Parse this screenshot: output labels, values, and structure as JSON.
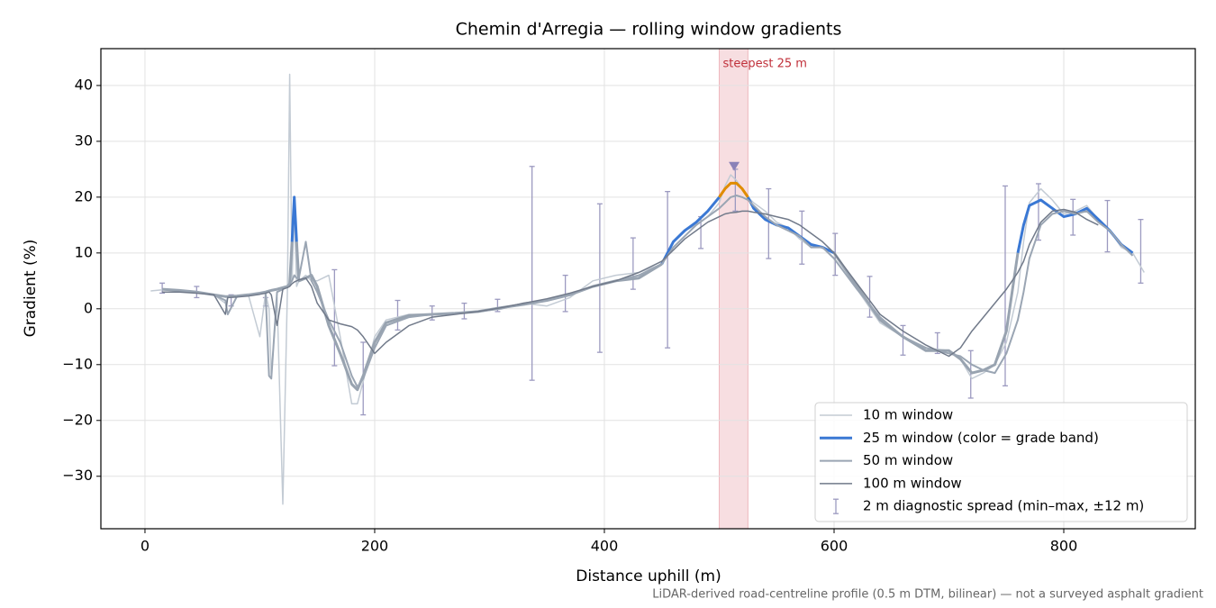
{
  "chart_data": {
    "type": "line",
    "title": "Chemin d'Arregia — rolling window gradients",
    "x_label": "Distance uphill (m)",
    "y_label": "Gradient (%)",
    "footnote": "LiDAR-derived road-centreline profile (0.5 m DTM, bilinear) — not a surveyed asphalt gradient",
    "xlim": [
      -38.4,
      914.5
    ],
    "ylim": [
      -39.4,
      46.6
    ],
    "xticks": [
      0,
      200,
      400,
      600,
      800
    ],
    "yticks": [
      {
        "value": -30,
        "label": "−30"
      },
      {
        "value": -20,
        "label": "−20"
      },
      {
        "value": -10,
        "label": "−10"
      },
      0,
      10,
      20,
      30,
      40
    ],
    "grid": true,
    "legend": "lower right",
    "x": [
      5,
      15,
      30,
      45,
      60,
      70,
      72,
      80,
      90,
      100,
      105,
      108,
      110,
      115,
      120,
      124,
      126,
      128,
      130,
      132,
      134,
      140,
      145,
      150,
      160,
      170,
      180,
      185,
      190,
      200,
      210,
      230,
      250,
      270,
      290,
      310,
      330,
      350,
      370,
      390,
      410,
      430,
      450,
      460,
      470,
      480,
      490,
      500,
      505,
      510,
      515,
      520,
      525,
      530,
      540,
      550,
      560,
      570,
      580,
      590,
      600,
      620,
      640,
      660,
      680,
      700,
      710,
      720,
      730,
      740,
      750,
      760,
      765,
      770,
      780,
      790,
      800,
      810,
      820,
      830,
      840,
      850,
      860,
      870
    ],
    "series": [
      {
        "name": "10 m window",
        "color": "#c3cbd4",
        "width": 1.5,
        "values": [
          3.2,
          3.4,
          3.2,
          3,
          2.5,
          1,
          2,
          2.2,
          2.5,
          -5,
          2.8,
          0,
          -12,
          2,
          -35,
          3.5,
          42,
          5,
          18,
          4,
          5,
          6,
          5,
          5,
          6,
          -5,
          -17,
          -17,
          -13,
          -5,
          -2,
          -1,
          -1,
          -0.8,
          -0.5,
          0,
          1,
          0.5,
          2,
          5,
          6,
          6.5,
          8,
          12,
          14,
          15,
          16.5,
          19,
          22,
          24,
          23,
          21.5,
          20,
          19,
          17.5,
          15.5,
          14.5,
          12.5,
          11,
          11,
          9,
          3.5,
          -2.5,
          -5,
          -7,
          -7.5,
          -9,
          -12.5,
          -11.5,
          -10,
          -6,
          3,
          12,
          19,
          21.5,
          19.5,
          17,
          17.5,
          18.5,
          16,
          14,
          11,
          10,
          6.5
        ]
      },
      {
        "name": "25 m window (color = grade band)",
        "color": "#3a78d4",
        "width": 3,
        "base_color": "#98a3b0",
        "grade_bands": [
          {
            "from": 10,
            "color": "#3a78d4"
          },
          {
            "from": 20,
            "color": "#e08c00"
          }
        ],
        "values": [
          null,
          3.5,
          3.3,
          3,
          2.5,
          2.2,
          2.2,
          2.3,
          2.5,
          2.8,
          3,
          3.2,
          3.3,
          3.5,
          3.8,
          4,
          4.5,
          12,
          20,
          12,
          5,
          5.5,
          6,
          4,
          -3,
          -8,
          -13.5,
          -14.5,
          -12,
          -6,
          -2.5,
          -1.2,
          -1,
          -0.8,
          -0.5,
          0.2,
          0.8,
          1.5,
          2.5,
          4,
          5,
          5.5,
          8,
          12,
          14,
          15.5,
          17.5,
          20,
          21.5,
          22.5,
          22.5,
          21.5,
          20,
          18,
          16,
          15,
          14.5,
          13,
          11.5,
          11,
          10,
          4,
          -2,
          -5,
          -7.5,
          -7.5,
          -9,
          -11.5,
          -11,
          -10,
          -4,
          10,
          15,
          18.5,
          19.5,
          18,
          16.5,
          17,
          18,
          16,
          14,
          11.5,
          10,
          null
        ]
      },
      {
        "name": "50 m window",
        "color": "#9aa5b3",
        "width": 2,
        "values": [
          null,
          null,
          3.2,
          3,
          2.5,
          1.5,
          -1,
          2.2,
          2.5,
          2.8,
          3,
          -12,
          -12.5,
          3,
          3.5,
          4,
          4.5,
          5,
          6,
          5.5,
          5.5,
          12,
          5,
          3,
          -2,
          -6,
          -12,
          -14,
          -12.5,
          -7,
          -3,
          -1.5,
          -1,
          -0.8,
          -0.5,
          0,
          1,
          1.5,
          2.5,
          4,
          5,
          6,
          8,
          11,
          13,
          15,
          16.5,
          18,
          19,
          20,
          20.3,
          20,
          19.5,
          18.5,
          16.5,
          15,
          14,
          13,
          11,
          11,
          9,
          3.5,
          -1.5,
          -5,
          -7,
          -8,
          -8.5,
          -10,
          -11,
          -11.5,
          -8,
          -2,
          3,
          9,
          15,
          17,
          17.5,
          17,
          17.5,
          15.5,
          14,
          11.5,
          9.5,
          null
        ]
      },
      {
        "name": "100 m window",
        "color": "#717a8a",
        "width": 1.5,
        "values": [
          null,
          3,
          3,
          2.8,
          2.5,
          -1,
          2,
          2.1,
          2.3,
          2.6,
          2.8,
          3,
          2.5,
          -3,
          3.5,
          3.8,
          4,
          4.5,
          4.8,
          5,
          5.2,
          5.5,
          4,
          1,
          -2,
          -2.7,
          -3.2,
          -3.8,
          -5,
          -8,
          -6,
          -3,
          -1.5,
          -1,
          -0.5,
          0.2,
          1,
          1.8,
          2.8,
          4,
          5,
          6.5,
          8.5,
          10.5,
          12.5,
          14,
          15.5,
          16.5,
          17,
          17.2,
          17.3,
          17.5,
          17.5,
          17.3,
          17,
          16.5,
          16,
          15,
          13.5,
          12,
          10,
          4.5,
          -1,
          -4,
          -6.5,
          -8.5,
          -7,
          -4,
          -1.5,
          1,
          3.5,
          6.5,
          8.5,
          11.5,
          15.5,
          17.5,
          17.8,
          17.3,
          16,
          15,
          null,
          null,
          null,
          null
        ]
      }
    ],
    "errorbars": {
      "name": "2 m diagnostic spread (min–max, ±12 m)",
      "color": "#9c9ac0",
      "x": [
        15,
        45,
        75,
        105,
        165,
        190,
        220,
        250,
        278,
        307,
        337,
        366,
        396,
        425,
        455,
        484,
        514,
        543,
        572,
        601,
        631,
        660,
        690,
        719,
        749,
        778,
        808,
        838,
        867
      ],
      "low": [
        2.8,
        2,
        0.5,
        0.5,
        -10.2,
        -19,
        -3.8,
        -2,
        -1.8,
        -0.5,
        -12.8,
        -0.5,
        -7.8,
        3.5,
        -7,
        10.8,
        17.5,
        9,
        8,
        6,
        -1.5,
        -8.3,
        -8,
        -16,
        -13.8,
        12.3,
        13.2,
        10.2,
        4.6
      ],
      "high": [
        4.6,
        4,
        2.5,
        2,
        7,
        -6,
        1.5,
        0.5,
        1,
        1.7,
        25.5,
        6,
        18.8,
        12.7,
        21,
        16.5,
        25,
        21.5,
        17.5,
        13.5,
        5.8,
        -3,
        -4.3,
        -7.5,
        22,
        22.4,
        19.6,
        19.4,
        16
      ]
    },
    "highlight": {
      "label": "steepest 25 m",
      "x": [
        500,
        525
      ],
      "color": "#e8a0a8",
      "text_color": "#c0303a",
      "marker": {
        "x": 513,
        "y": 25.5,
        "color": "#8a82b8"
      }
    }
  }
}
